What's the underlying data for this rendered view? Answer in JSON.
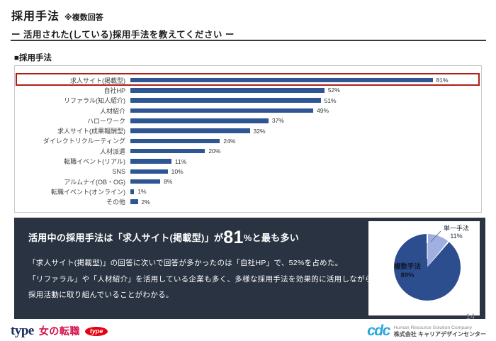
{
  "page": {
    "title": "採用手法",
    "title_note": "※複数回答",
    "subtitle": "ー 活用された(している)採用手法を教えてください ー",
    "page_number": "14"
  },
  "chart_data": [
    {
      "type": "bar",
      "orientation": "horizontal",
      "title": "■採用手法",
      "categories": [
        "求人サイト(掲載型)",
        "自社HP",
        "リファラル(知人紹介)",
        "人材紹介",
        "ハローワーク",
        "求人サイト(成果報酬型)",
        "ダイレクトリクルーティング",
        "人材派遣",
        "転職イベント(リアル)",
        "SNS",
        "アルムナイ(OB・OG)",
        "転職イベント(オンライン)",
        "その他"
      ],
      "values": [
        81,
        52,
        51,
        49,
        37,
        32,
        24,
        20,
        11,
        10,
        8,
        1,
        2
      ],
      "value_suffix": "%",
      "xlim": [
        0,
        94
      ],
      "grid": false,
      "legend": false,
      "bar_color": "#2f5694",
      "highlight_index": 0,
      "highlight_color": "#b01f16"
    },
    {
      "type": "pie",
      "start_angle_deg": 0,
      "slices": [
        {
          "label": "単一手法",
          "value": 11,
          "value_text": "11%",
          "color": "#9fb0e0"
        },
        {
          "label": "複数手法",
          "value": 89,
          "value_text": "89%",
          "color": "#2c4d8e"
        }
      ]
    }
  ],
  "insight_box": {
    "headline_prefix": "活用中の採用手法は「求人サイト(掲載型)」が",
    "headline_number": "81",
    "headline_suffix": "%と最も多い",
    "body_lines": [
      "「求人サイト(掲載型)」の回答に次いで回答が多かったのは「自社HP」で、52%を占めた。",
      "「リファラル」や「人材紹介」を活用している企業も多く、多様な採用手法を効果的に活用しながら",
      "採用活動に取り組んでいることがわかる。"
    ]
  },
  "footer": {
    "type_logo": "type",
    "woman_logo": "女の転職",
    "woman_badge": "type",
    "cdc_logo": "cdc",
    "cdc_en": "Human Resource Solution Company",
    "cdc_jp": "株式会社 キャリアデザインセンター"
  }
}
